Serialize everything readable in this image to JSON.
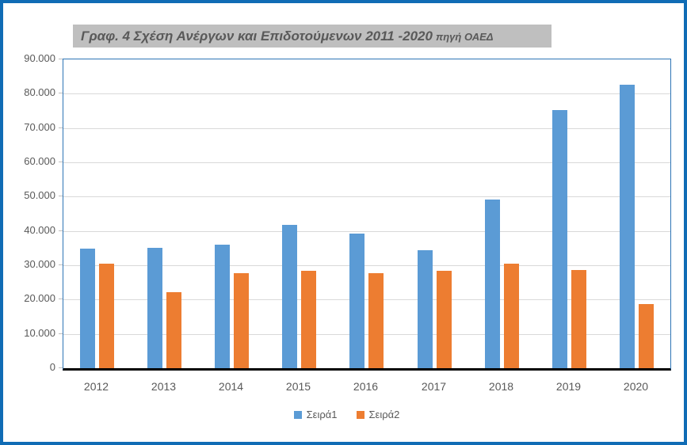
{
  "title": {
    "text": "Γραφ. 4 Σχέση Ανέργων και Επιδοτούμενων 2011 -2020",
    "source": "πηγή ΟΑΕΔ"
  },
  "colors": {
    "series1": "#5b9bd5",
    "series2": "#ed7d31",
    "outer_border": "#106cb5",
    "plot_border": "#2e75b6",
    "gridline": "#d9d9d9",
    "axis_line": "#000000",
    "title_background": "#bfbfbf",
    "text": "#595959"
  },
  "chart_data": {
    "type": "bar",
    "title": "Γραφ. 4 Σχέση Ανέργων και Επιδοτούμενων 2011 -2020 πηγή ΟΑΕΔ",
    "categories": [
      "2012",
      "2013",
      "2014",
      "2015",
      "2016",
      "2017",
      "2018",
      "2019",
      "2020"
    ],
    "series": [
      {
        "name": "Σειρά1",
        "color": "#5b9bd5",
        "values": [
          34800,
          35000,
          35900,
          41800,
          39300,
          34300,
          49100,
          75200,
          82600
        ]
      },
      {
        "name": "Σειρά2",
        "color": "#ed7d31",
        "values": [
          30500,
          22100,
          27700,
          28300,
          27700,
          28400,
          30500,
          28700,
          18600
        ]
      }
    ],
    "ylim": [
      0,
      90000
    ],
    "ytick_step": 10000,
    "ytick_labels": [
      "0",
      "10.000",
      "20.000",
      "30.000",
      "40.000",
      "50.000",
      "60.000",
      "70.000",
      "80.000",
      "90.000"
    ],
    "grid": true,
    "legend_position": "bottom",
    "xlabel": "",
    "ylabel": ""
  }
}
